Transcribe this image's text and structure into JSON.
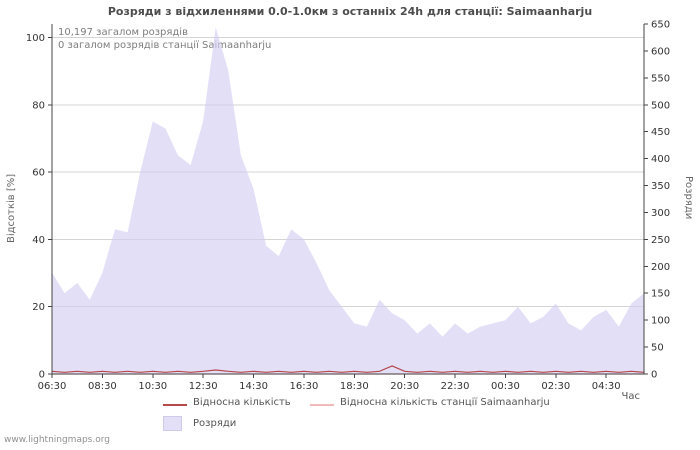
{
  "title": "Розряди з відхиленнями 0.0-1.0км з останніх 24h для станції: Saimaanharju",
  "annotations": {
    "total": "10,197 загалом розрядів",
    "station_total": "0 загалом розрядів станції Saimaanharju"
  },
  "axes": {
    "left_label": "Відсотків  [%]",
    "right_label": "Розряди",
    "x_label": "Час"
  },
  "legend": [
    {
      "label": "Відносна кількість",
      "type": "line",
      "color": "#b5494a"
    },
    {
      "label": "Відносна кількість станції Saimaanharju",
      "type": "line",
      "color": "#f0b9ba"
    },
    {
      "label": "Розряди",
      "type": "area",
      "color": "#e2dff6"
    }
  ],
  "footer": "www.lightningmaps.org",
  "colors": {
    "area_fill": "#d3cef2",
    "relative_line": "#b5494a",
    "station_line": "#f0b9ba",
    "grid": "#d4d4d4",
    "axis": "#444444",
    "tick_text": "#333333"
  },
  "chart_data": {
    "type": "area",
    "title": "Розряди з відхиленнями 0.0-1.0км з останніх 24h для станції: Saimaanharju",
    "xlabel": "Час",
    "ylabel_left": "Відсотків [%]",
    "ylabel_right": "Розряди",
    "grid": true,
    "legend_position": "bottom",
    "x": [
      "06:30",
      "07:00",
      "07:30",
      "08:00",
      "08:30",
      "09:00",
      "09:30",
      "10:00",
      "10:30",
      "11:00",
      "11:30",
      "12:00",
      "12:30",
      "13:00",
      "13:30",
      "14:00",
      "14:30",
      "15:00",
      "15:30",
      "16:00",
      "16:30",
      "17:00",
      "17:30",
      "18:00",
      "18:30",
      "19:00",
      "19:30",
      "20:00",
      "20:30",
      "21:00",
      "21:30",
      "22:00",
      "22:30",
      "23:00",
      "23:30",
      "00:00",
      "00:30",
      "01:00",
      "01:30",
      "02:00",
      "02:30",
      "03:00",
      "03:30",
      "04:00",
      "04:30",
      "05:00",
      "05:30",
      "06:00"
    ],
    "x_ticks": [
      {
        "index": 0,
        "label": "06:30"
      },
      {
        "index": 4,
        "label": "08:30"
      },
      {
        "index": 8,
        "label": "10:30"
      },
      {
        "index": 12,
        "label": "12:30"
      },
      {
        "index": 16,
        "label": "14:30"
      },
      {
        "index": 20,
        "label": "16:30"
      },
      {
        "index": 24,
        "label": "18:30"
      },
      {
        "index": 28,
        "label": "20:30"
      },
      {
        "index": 32,
        "label": "22:30"
      },
      {
        "index": 36,
        "label": "00:30"
      },
      {
        "index": 40,
        "label": "02:30"
      },
      {
        "index": 44,
        "label": "04:30"
      }
    ],
    "left_axis": {
      "ticks": [
        0,
        20,
        40,
        60,
        80,
        100
      ],
      "max": 104,
      "range": [
        0,
        100
      ]
    },
    "right_axis": {
      "ticks": [
        0,
        50,
        100,
        150,
        200,
        250,
        300,
        350,
        400,
        450,
        500,
        550,
        600,
        650
      ],
      "max": 650,
      "range": [
        0,
        650
      ]
    },
    "series": [
      {
        "name": "Розряди",
        "type": "area",
        "axis": "right",
        "color": "#d3cef2",
        "opacity": 0.65,
        "values": [
          188,
          150,
          169,
          138,
          188,
          269,
          263,
          375,
          469,
          456,
          406,
          388,
          469,
          644,
          563,
          406,
          344,
          238,
          219,
          269,
          250,
          206,
          156,
          125,
          94,
          88,
          138,
          113,
          100,
          75,
          94,
          69,
          94,
          75,
          88,
          94,
          100,
          125,
          94,
          106,
          131,
          94,
          81,
          106,
          119,
          88,
          131,
          150
        ]
      },
      {
        "name": "Відносна кількість станції Saimaanharju",
        "type": "line",
        "axis": "left",
        "color": "#f0b9ba",
        "values": [
          0,
          0,
          0,
          0,
          0,
          0,
          0,
          0,
          0,
          0,
          0,
          0,
          0,
          0,
          0,
          0,
          0,
          0,
          0,
          0,
          0,
          0,
          0,
          0,
          0,
          0,
          0,
          0,
          0,
          0,
          0,
          0,
          0,
          0,
          0,
          0,
          0,
          0,
          0,
          0,
          0,
          0,
          0,
          0,
          0,
          0,
          0,
          0
        ]
      },
      {
        "name": "Відносна кількість",
        "type": "line",
        "axis": "left",
        "color": "#b5494a",
        "values": [
          0.8,
          0.5,
          0.8,
          0.5,
          0.8,
          0.5,
          0.8,
          0.5,
          0.8,
          0.5,
          0.8,
          0.5,
          0.8,
          1.2,
          0.8,
          0.5,
          0.8,
          0.5,
          0.8,
          0.5,
          0.8,
          0.5,
          0.8,
          0.5,
          0.8,
          0.5,
          0.8,
          2.4,
          0.8,
          0.5,
          0.8,
          0.5,
          0.8,
          0.5,
          0.8,
          0.5,
          0.8,
          0.5,
          0.8,
          0.5,
          0.8,
          0.5,
          0.8,
          0.5,
          0.8,
          0.5,
          0.8,
          0.5
        ]
      }
    ],
    "annotations": [
      "10,197 загалом розрядів",
      "0 загалом розрядів станції Saimaanharju"
    ]
  }
}
